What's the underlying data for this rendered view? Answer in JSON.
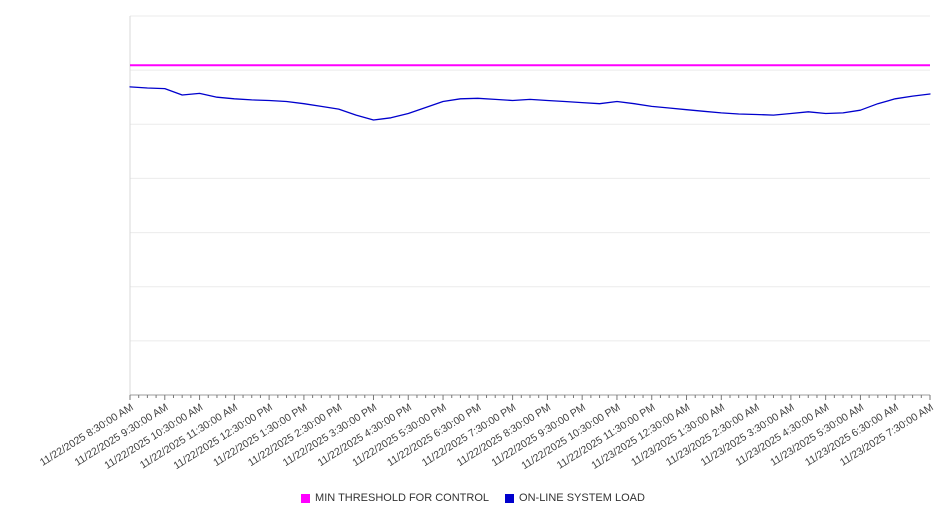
{
  "chart_data": {
    "type": "line",
    "title": "",
    "xlabel": "",
    "ylabel": "",
    "ylim": [
      0,
      7
    ],
    "y_gridline_count": 7,
    "y_axis_labels_visible": false,
    "grid": "horizontal",
    "legend_position": "bottom",
    "colors": {
      "gridline": "#ebebeb",
      "plot_left_border": "#d9d9d9",
      "axis_line": "#9e9e9e",
      "tick": "#777777",
      "tick_label": "#404040"
    },
    "x_tick_labels": [
      "11/22/2025 8:30:00 AM",
      "11/22/2025 9:30:00 AM",
      "11/22/2025 10:30:00 AM",
      "11/22/2025 11:30:00 AM",
      "11/22/2025 12:30:00 PM",
      "11/22/2025 1:30:00 PM",
      "11/22/2025 2:30:00 PM",
      "11/22/2025 3:30:00 PM",
      "11/22/2025 4:30:00 PM",
      "11/22/2025 5:30:00 PM",
      "11/22/2025 6:30:00 PM",
      "11/22/2025 7:30:00 PM",
      "11/22/2025 8:30:00 PM",
      "11/22/2025 9:30:00 PM",
      "11/22/2025 10:30:00 PM",
      "11/22/2025 11:30:00 PM",
      "11/23/2025 12:30:00 AM",
      "11/23/2025 1:30:00 AM",
      "11/23/2025 2:30:00 AM",
      "11/23/2025 3:30:00 AM",
      "11/23/2025 4:30:00 AM",
      "11/23/2025 5:30:00 AM",
      "11/23/2025 6:30:00 AM",
      "11/23/2025 7:30:00 AM"
    ],
    "series": [
      {
        "name": "MIN THRESHOLD FOR CONTROL",
        "kind": "threshold",
        "color": "#ff00ff",
        "value": 6.09
      },
      {
        "name": "ON-LINE SYSTEM LOAD",
        "kind": "line",
        "color": "#0000cd",
        "x_step": 0.5,
        "values": [
          5.69,
          5.67,
          5.66,
          5.54,
          5.57,
          5.5,
          5.47,
          5.45,
          5.44,
          5.42,
          5.38,
          5.33,
          5.28,
          5.17,
          5.08,
          5.12,
          5.2,
          5.31,
          5.42,
          5.47,
          5.48,
          5.46,
          5.44,
          5.46,
          5.44,
          5.42,
          5.4,
          5.38,
          5.42,
          5.38,
          5.33,
          5.3,
          5.27,
          5.24,
          5.21,
          5.19,
          5.18,
          5.17,
          5.2,
          5.23,
          5.2,
          5.21,
          5.26,
          5.38,
          5.47,
          5.52,
          5.56
        ]
      }
    ]
  },
  "legend": {
    "items": [
      {
        "label": "MIN THRESHOLD FOR CONTROL",
        "color": "#ff00ff"
      },
      {
        "label": "ON-LINE SYSTEM LOAD",
        "color": "#0000cd"
      }
    ]
  }
}
